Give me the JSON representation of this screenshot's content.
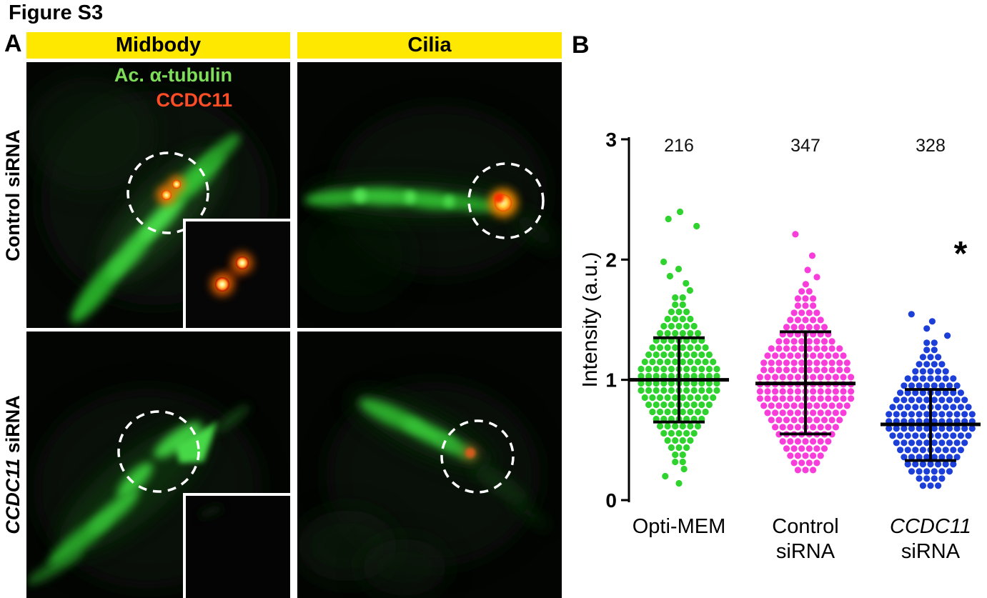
{
  "figure": {
    "title": "Figure S3",
    "panel_a_label": "A",
    "panel_b_label": "B"
  },
  "panel_a": {
    "header_bg": "#ffe800",
    "headers": {
      "col1": "Midbody",
      "col2": "Cilia"
    },
    "rows": [
      {
        "italic": "",
        "label": "Control siRNA"
      },
      {
        "italic": "CCDC11",
        "label": " siRNA"
      }
    ],
    "stains": {
      "green_label": "Ac. α-tubulin",
      "green_color": "#7ede5a",
      "red_label": "CCDC11",
      "red_color": "#ff4d26"
    }
  },
  "chart_data": {
    "type": "scatter",
    "title": "",
    "ylabel": "Intensity (a.u.)",
    "ylim": [
      0,
      3
    ],
    "yticks": [
      0,
      1,
      2,
      3
    ],
    "grid": false,
    "legend": "none",
    "groups": [
      {
        "label_lines": [
          "Opti-MEM"
        ],
        "label_italic_first": false,
        "n": "216",
        "color": "#2ed32e",
        "mean": 1.0,
        "whisker_upper": 1.35,
        "whisker_lower": 0.65,
        "cloud_min": 0.08,
        "cloud_max": 2.6,
        "cloud_center": 1.0,
        "cloud_sd": 0.36,
        "max_per_row": 11,
        "significance": ""
      },
      {
        "label_lines": [
          "Control",
          "siRNA"
        ],
        "label_italic_first": false,
        "n": "347",
        "color": "#f93ddb",
        "mean": 0.97,
        "whisker_upper": 1.4,
        "whisker_lower": 0.55,
        "cloud_min": 0.25,
        "cloud_max": 2.45,
        "cloud_center": 0.95,
        "cloud_sd": 0.4,
        "max_per_row": 13,
        "significance": ""
      },
      {
        "label_lines": [
          "CCDC11",
          "siRNA"
        ],
        "label_italic_first": true,
        "n": "328",
        "color": "#1d3fd9",
        "mean": 0.63,
        "whisker_upper": 0.92,
        "whisker_lower": 0.33,
        "cloud_min": 0.12,
        "cloud_max": 1.55,
        "cloud_center": 0.65,
        "cloud_sd": 0.33,
        "max_per_row": 12,
        "significance": "*"
      }
    ]
  }
}
